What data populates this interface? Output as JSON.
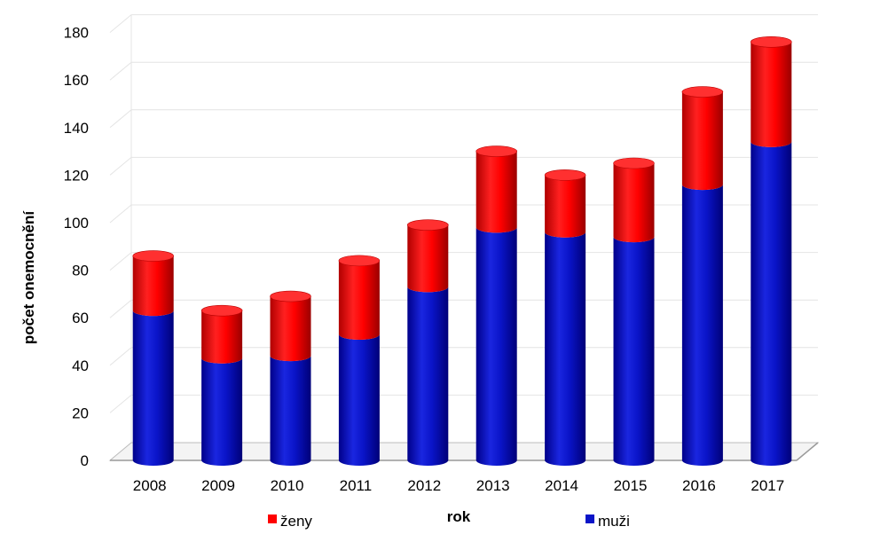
{
  "chart_data": {
    "type": "bar",
    "stacked": true,
    "style": "3d-cylinder",
    "categories": [
      "2008",
      "2009",
      "2010",
      "2011",
      "2012",
      "2013",
      "2014",
      "2015",
      "2016",
      "2017"
    ],
    "series": [
      {
        "name": "muži",
        "color": "#0a14c8",
        "values": [
          63,
          43,
          44,
          53,
          73,
          98,
          96,
          94,
          116,
          134
        ]
      },
      {
        "name": "ženy",
        "color": "#ff0000",
        "values": [
          23,
          20,
          25,
          31,
          26,
          32,
          24,
          31,
          39,
          42
        ]
      }
    ],
    "xlabel": "rok",
    "ylabel": "počet onemocnění",
    "ylim": [
      0,
      180
    ],
    "yticks": [
      "0",
      "20",
      "40",
      "60",
      "80",
      "100",
      "120",
      "140",
      "160",
      "180"
    ],
    "grid": true,
    "legend_position": "bottom",
    "legend": [
      {
        "label": "ženy",
        "color": "#ff0000"
      },
      {
        "label": "muži",
        "color": "#0a14c8"
      }
    ]
  }
}
